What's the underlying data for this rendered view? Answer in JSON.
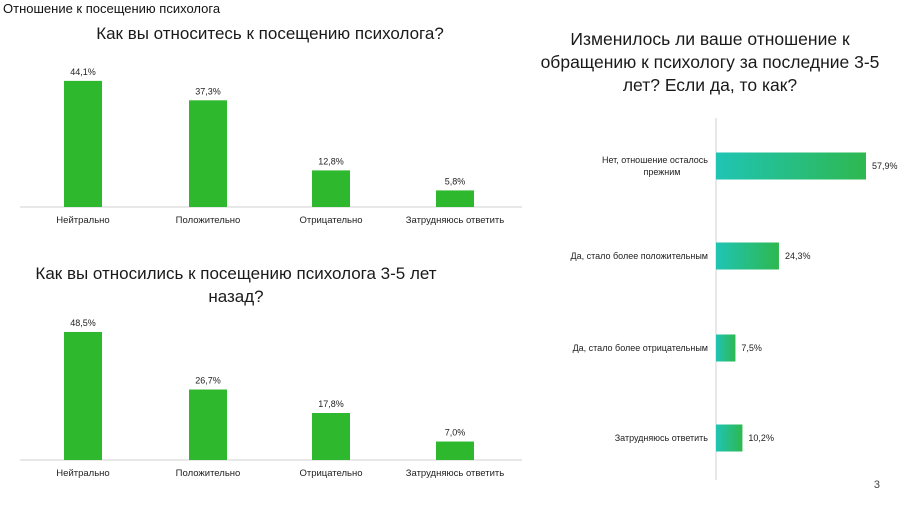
{
  "slide": {
    "title": "Отношение к посещению психолога",
    "page_number": "3"
  },
  "colors": {
    "vbar": "#2eb82e",
    "hbar_start": "#1fc4b4",
    "hbar_end": "#2eb850"
  },
  "chart_data": [
    {
      "type": "bar",
      "title": "Как вы относитесь к посещению психолога?",
      "categories": [
        "Нейтрально",
        "Положительно",
        "Отрицательно",
        "Затрудняюсь ответить"
      ],
      "values": [
        44.1,
        37.3,
        12.8,
        5.8
      ],
      "data_labels": [
        "44,1%",
        "37,3%",
        "12,8%",
        "5,8%"
      ],
      "xlabel": "",
      "ylabel": "",
      "ylim": [
        0,
        50
      ],
      "grid": false,
      "legend": "none"
    },
    {
      "type": "bar",
      "title": "Как вы относились к посещению психолога 3-5 лет назад?",
      "categories": [
        "Нейтрально",
        "Положительно",
        "Отрицательно",
        "Затрудняюсь ответить"
      ],
      "values": [
        48.5,
        26.7,
        17.8,
        7.0
      ],
      "data_labels": [
        "48,5%",
        "26,7%",
        "17,8%",
        "7,0%"
      ],
      "xlabel": "",
      "ylabel": "",
      "ylim": [
        0,
        50
      ],
      "grid": false,
      "legend": "none"
    },
    {
      "type": "bar",
      "orientation": "horizontal",
      "title": "Изменилось ли ваше отношение к обращению к психологу за последние 3-5 лет? Если да, то как?",
      "categories": [
        "Нет, отношение осталось прежним",
        "Да, стало более положительным",
        "Да, стало более отрицательным",
        "Затрудняюсь ответить"
      ],
      "values": [
        57.9,
        24.3,
        7.5,
        10.2
      ],
      "data_labels": [
        "57,9%",
        "24,3%",
        "7,5%",
        "10,2%"
      ],
      "xlabel": "",
      "ylabel": "",
      "xlim": [
        0,
        60
      ],
      "grid": false,
      "legend": "none"
    }
  ]
}
